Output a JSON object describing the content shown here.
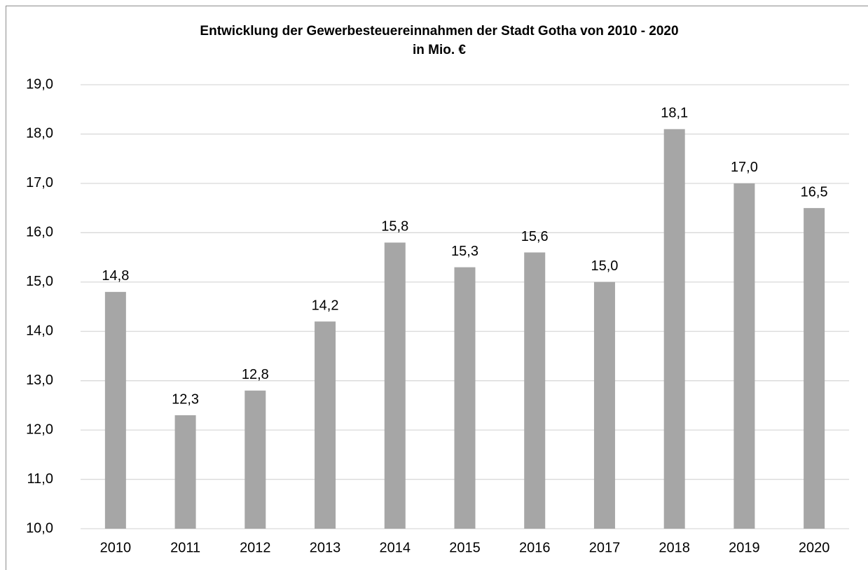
{
  "chart_data": {
    "type": "bar",
    "title": "Entwicklung der Gewerbesteuereinnahmen der Stadt Gotha von 2010 - 2020",
    "subtitle": "in Mio. €",
    "categories": [
      "2010",
      "2011",
      "2012",
      "2013",
      "2014",
      "2015",
      "2016",
      "2017",
      "2018",
      "2019",
      "2020"
    ],
    "values": [
      14.8,
      12.3,
      12.8,
      14.2,
      15.8,
      15.3,
      15.6,
      15.0,
      18.1,
      17.0,
      16.5
    ],
    "value_labels": [
      "14,8",
      "12,3",
      "12,8",
      "14,2",
      "15,8",
      "15,3",
      "15,6",
      "15,0",
      "18,1",
      "17,0",
      "16,5"
    ],
    "color": "#a6a6a6",
    "ylim": [
      10,
      19
    ],
    "yticks": [
      {
        "value": 10,
        "label": "10,0"
      },
      {
        "value": 11,
        "label": "11,0"
      },
      {
        "value": 12,
        "label": "12,0"
      },
      {
        "value": 13,
        "label": "13,0"
      },
      {
        "value": 14,
        "label": "14,0"
      },
      {
        "value": 15,
        "label": "15,0"
      },
      {
        "value": 16,
        "label": "16,0"
      },
      {
        "value": 17,
        "label": "17,0"
      },
      {
        "value": 18,
        "label": "18,0"
      },
      {
        "value": 19,
        "label": "19,0"
      }
    ],
    "grid": true
  }
}
